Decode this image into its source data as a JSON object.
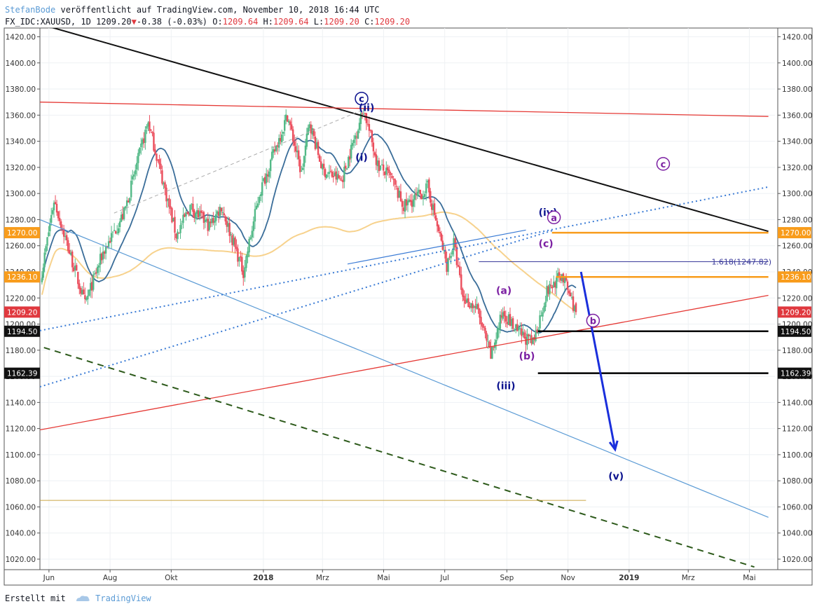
{
  "header": {
    "user": "StefanBode",
    "published": "veröffentlicht auf TradingView.com, November 10, 2018 16:44 UTC",
    "symbol": "FX_IDC:XAUUSD, 1D",
    "last": "1209.20",
    "change_arrow": "▼",
    "change": "-0.38 (-0.03%)",
    "ohlc": {
      "o_label": "O:",
      "o": "1209.64",
      "h_label": "H:",
      "h": "1209.64",
      "l_label": "L:",
      "l": "1209.20",
      "c_label": "C:",
      "c": "1209.20"
    }
  },
  "footer": {
    "created_with": "Erstellt mit",
    "brand": "TradingView"
  },
  "colors": {
    "up": "#53b987",
    "down": "#eb4d5c",
    "ma_short": "#3a6d99",
    "ma_long": "#f7d28d",
    "orange": "#f89c1c",
    "purple": "#7b1fa2",
    "navy": "#0d148f",
    "blue_arrow": "#1a2fdc"
  },
  "chart_data": {
    "type": "candlestick",
    "title": "FX_IDC:XAUUSD, 1D",
    "ylim": [
      1010,
      1425
    ],
    "y_ticks": [
      "1420.00",
      "1400.00",
      "1380.00",
      "1360.00",
      "1340.00",
      "1320.00",
      "1300.00",
      "1280.00",
      "1260.00",
      "1240.00",
      "1220.00",
      "1200.00",
      "1180.00",
      "1160.00",
      "1140.00",
      "1120.00",
      "1100.00",
      "1080.00",
      "1060.00",
      "1040.00",
      "1020.00"
    ],
    "x_ticks": [
      "Jun",
      "Aug",
      "Okt",
      "2018",
      "Mrz",
      "Mai",
      "Jul",
      "Sep",
      "Nov",
      "2019",
      "Mrz",
      "Mai"
    ],
    "price_key_points": [
      [
        "2017-05-25",
        1240
      ],
      [
        "2017-06-06",
        1295
      ],
      [
        "2017-07-07",
        1215
      ],
      [
        "2017-07-25",
        1255
      ],
      [
        "2017-08-15",
        1285
      ],
      [
        "2017-09-08",
        1355
      ],
      [
        "2017-10-06",
        1268
      ],
      [
        "2017-10-20",
        1290
      ],
      [
        "2017-11-08",
        1275
      ],
      [
        "2017-11-20",
        1290
      ],
      [
        "2017-12-12",
        1240
      ],
      [
        "2017-12-28",
        1300
      ],
      [
        "2018-01-25",
        1360
      ],
      [
        "2018-02-08",
        1315
      ],
      [
        "2018-02-16",
        1355
      ],
      [
        "2018-03-01",
        1318
      ],
      [
        "2018-03-20",
        1310
      ],
      [
        "2018-04-11",
        1365
      ],
      [
        "2018-04-25",
        1322
      ],
      [
        "2018-05-08",
        1312
      ],
      [
        "2018-05-21",
        1290
      ],
      [
        "2018-06-08",
        1300
      ],
      [
        "2018-06-14",
        1305
      ],
      [
        "2018-07-03",
        1245
      ],
      [
        "2018-07-10",
        1262
      ],
      [
        "2018-07-19",
        1220
      ],
      [
        "2018-08-02",
        1212
      ],
      [
        "2018-08-16",
        1175
      ],
      [
        "2018-08-28",
        1210
      ],
      [
        "2018-09-10",
        1195
      ],
      [
        "2018-09-27",
        1185
      ],
      [
        "2018-10-11",
        1225
      ],
      [
        "2018-10-26",
        1238
      ],
      [
        "2018-11-09",
        1209.2
      ]
    ],
    "indicators": {
      "short_ma_color": "#3a6d99",
      "long_ma_color": "#f7d28d"
    },
    "price_labels": [
      {
        "text": "1270.00",
        "value": 1270,
        "kind": "orange"
      },
      {
        "text": "1236.10",
        "value": 1236.1,
        "kind": "orange"
      },
      {
        "text": "1209.20",
        "value": 1209.2,
        "kind": "red"
      },
      {
        "text": "1194.50",
        "value": 1194.5,
        "kind": "black"
      },
      {
        "text": "1162.39",
        "value": 1162.39,
        "kind": "black"
      }
    ],
    "fib_label": "1.618(1247.82)",
    "wave_labels": [
      {
        "text": "c",
        "kind": "circle-navy"
      },
      {
        "text": "(ii)",
        "kind": "navy"
      },
      {
        "text": "(i)",
        "kind": "navy"
      },
      {
        "text": "(iii)",
        "kind": "navy"
      },
      {
        "text": "(iv)",
        "kind": "navy"
      },
      {
        "text": "(v)",
        "kind": "navy"
      },
      {
        "text": "(a)",
        "kind": "purple"
      },
      {
        "text": "(b)",
        "kind": "purple"
      },
      {
        "text": "(c)",
        "kind": "purple"
      },
      {
        "text": "a",
        "kind": "circle-purple"
      },
      {
        "text": "b",
        "kind": "circle-purple"
      },
      {
        "text": "c",
        "kind": "circle-purple"
      }
    ]
  }
}
